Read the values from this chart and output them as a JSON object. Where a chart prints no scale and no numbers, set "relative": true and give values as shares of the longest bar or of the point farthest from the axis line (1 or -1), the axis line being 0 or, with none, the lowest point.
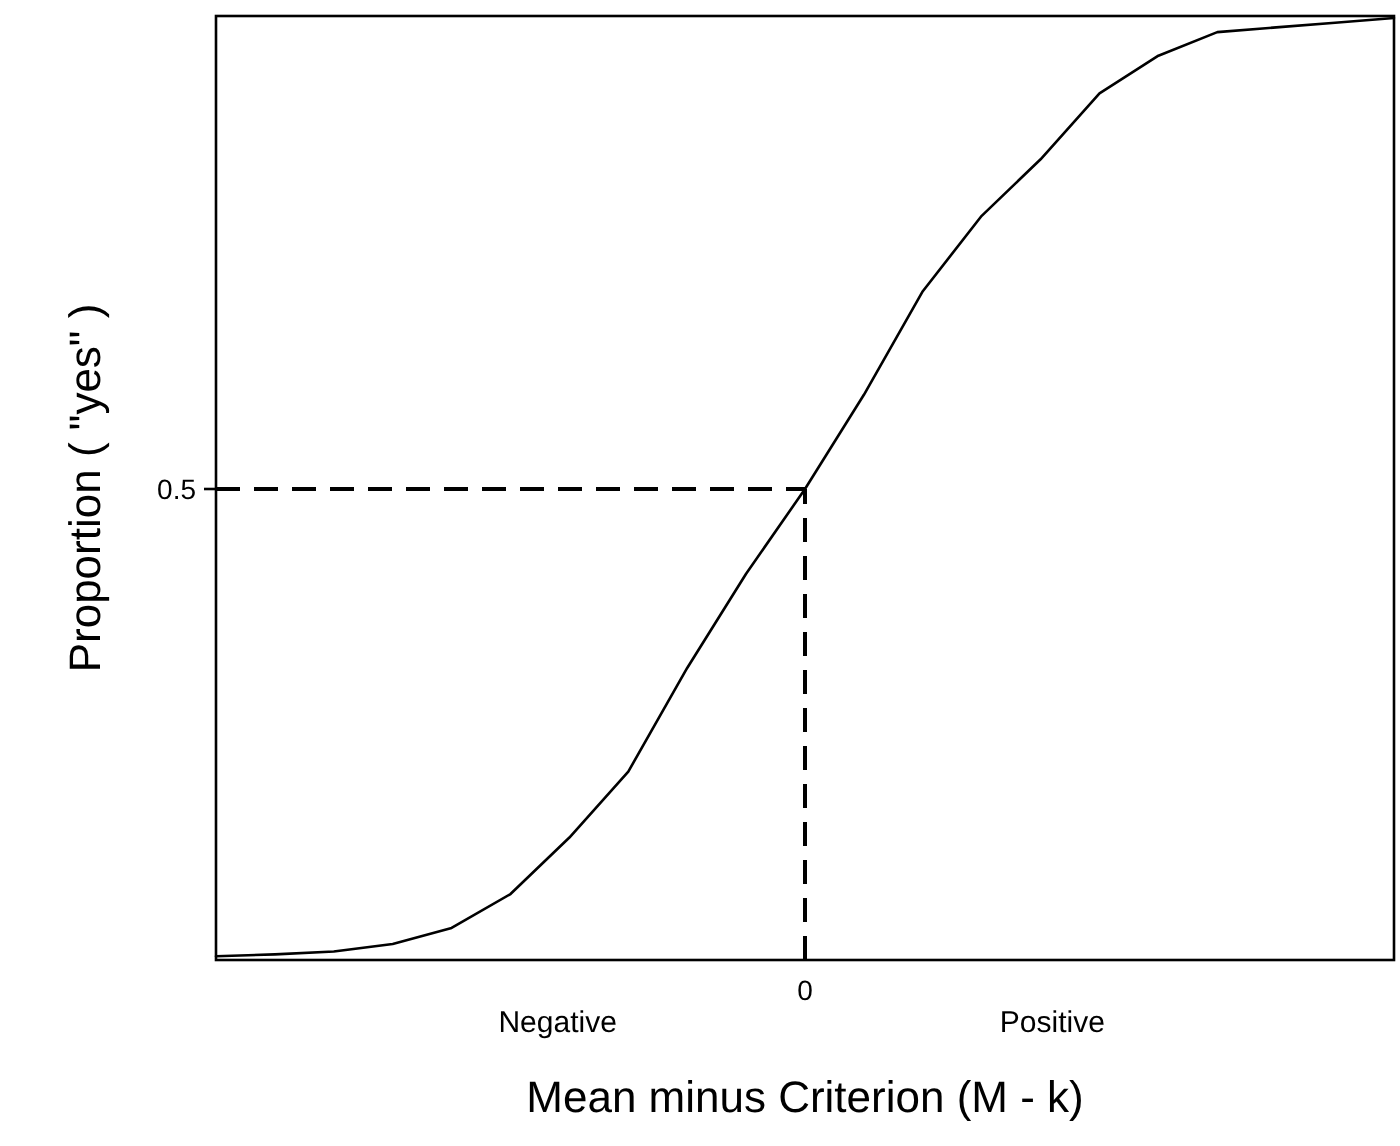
{
  "chart_data": {
    "type": "line",
    "relative": true,
    "xlabel": "Mean minus Criterion (M - k)",
    "ylabel": "Proportion ( \"yes\" )",
    "categories": [
      null,
      null,
      null,
      null,
      null,
      null,
      null,
      null,
      null,
      null,
      null,
      null,
      null,
      null,
      null,
      null,
      null,
      null,
      null,
      null,
      null
    ],
    "values": [
      0.004,
      0.006,
      0.009,
      0.017,
      0.034,
      0.07,
      0.13,
      0.2,
      0.31,
      0.41,
      0.5,
      0.6,
      0.71,
      0.79,
      0.85,
      0.92,
      0.96,
      0.985,
      0.99,
      0.995,
      1
    ],
    "color": "#000000",
    "ref_lines": [
      {
        "axis": "y",
        "value": 0.5,
        "label": "0.5",
        "line_style": "dashed"
      }
    ],
    "annotations": [
      "Negative",
      {
        "text": "0",
        "y": 0.5
      },
      "Positive"
    ]
  }
}
